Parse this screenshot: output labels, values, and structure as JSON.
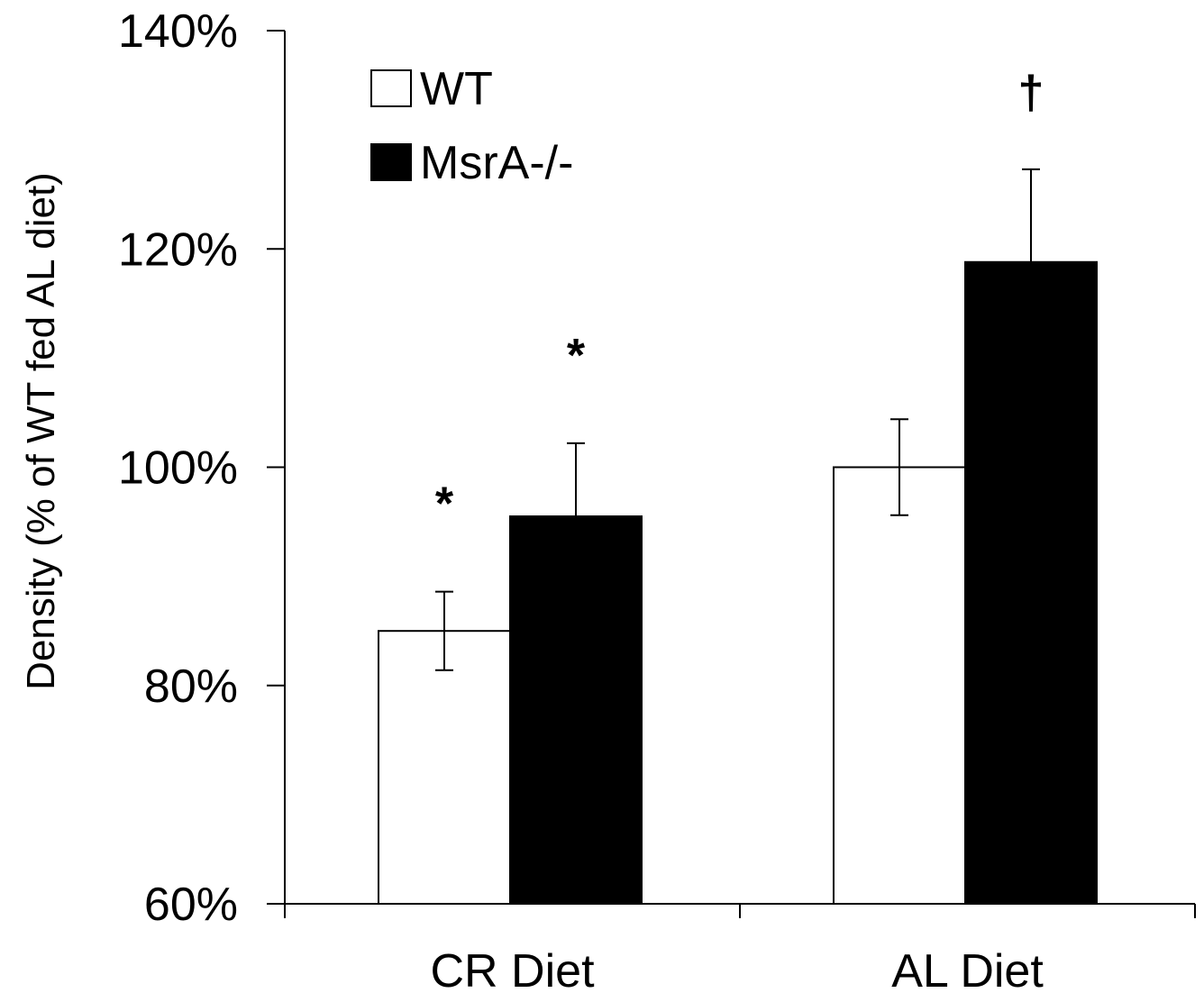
{
  "chart_data": {
    "type": "bar",
    "title": "",
    "xlabel": "",
    "ylabel": "Density (% of WT fed AL diet)",
    "ylim": [
      60,
      140
    ],
    "yticks": [
      60,
      80,
      100,
      120,
      140
    ],
    "ytick_labels": [
      "60%",
      "80%",
      "100%",
      "120%",
      "140%"
    ],
    "categories": [
      "CR Diet",
      "AL Diet"
    ],
    "series": [
      {
        "name": "WT",
        "color": "#ffffff",
        "values": [
          85,
          100
        ],
        "errors": [
          3.6,
          4.4
        ]
      },
      {
        "name": "MsrA-/-",
        "color": "#000000",
        "values": [
          95.5,
          118.8
        ],
        "errors": [
          6.7,
          8.5
        ]
      }
    ],
    "annotations": [
      {
        "text": "*",
        "category": "CR Diet",
        "series": "WT"
      },
      {
        "text": "*",
        "category": "CR Diet",
        "series": "MsrA-/-"
      },
      {
        "text": "†",
        "category": "AL Diet",
        "series": "MsrA-/-"
      }
    ],
    "legend": {
      "position": "top-left",
      "entries": [
        "WT",
        "MsrA-/-"
      ]
    },
    "grid": false
  }
}
